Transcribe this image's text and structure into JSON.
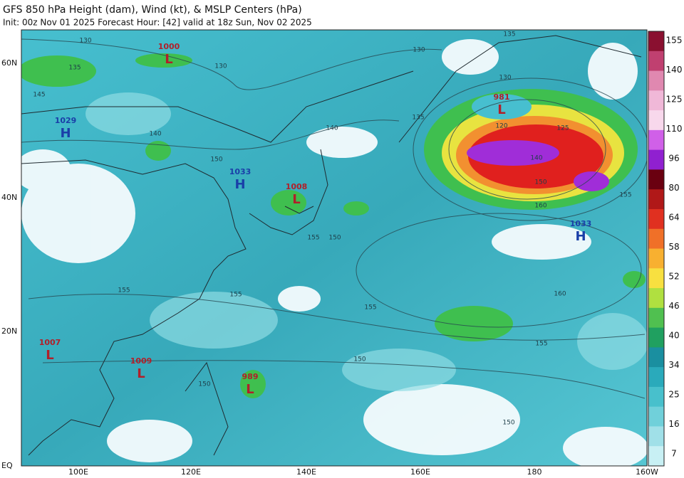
{
  "header": {
    "title": "GFS 850 hPa Height (dam), Wind (kt), & MSLP Centers (hPa)",
    "subtitle": "Init: 00z Nov 01 2025   Forecast Hour: [42]   valid at 18z Sun, Nov 02 2025"
  },
  "lat_labels": [
    "60N",
    "40N",
    "20N",
    "EQ"
  ],
  "lon_labels": [
    "100E",
    "120E",
    "140E",
    "160E",
    "180",
    "160W"
  ],
  "centers": [
    {
      "pressure": 1000,
      "letter": "L"
    },
    {
      "pressure": 1029,
      "letter": "H"
    },
    {
      "pressure": 1033,
      "letter": "H"
    },
    {
      "pressure": 1008,
      "letter": "L"
    },
    {
      "pressure": 981,
      "letter": "L"
    },
    {
      "pressure": 1033,
      "letter": "H"
    },
    {
      "pressure": 1007,
      "letter": "L"
    },
    {
      "pressure": 1009,
      "letter": "L"
    },
    {
      "pressure": 989,
      "letter": "L"
    }
  ],
  "contour_labels": [
    130,
    130,
    130,
    135,
    135,
    145,
    140,
    140,
    150,
    135,
    130,
    120,
    125,
    140,
    150,
    155,
    160,
    155,
    150,
    155,
    155,
    155,
    160,
    155,
    150,
    150,
    150
  ],
  "colorbar_ticks": [
    155,
    140,
    125,
    110,
    96,
    80,
    64,
    58,
    52,
    46,
    40,
    34,
    25,
    16,
    7
  ]
}
